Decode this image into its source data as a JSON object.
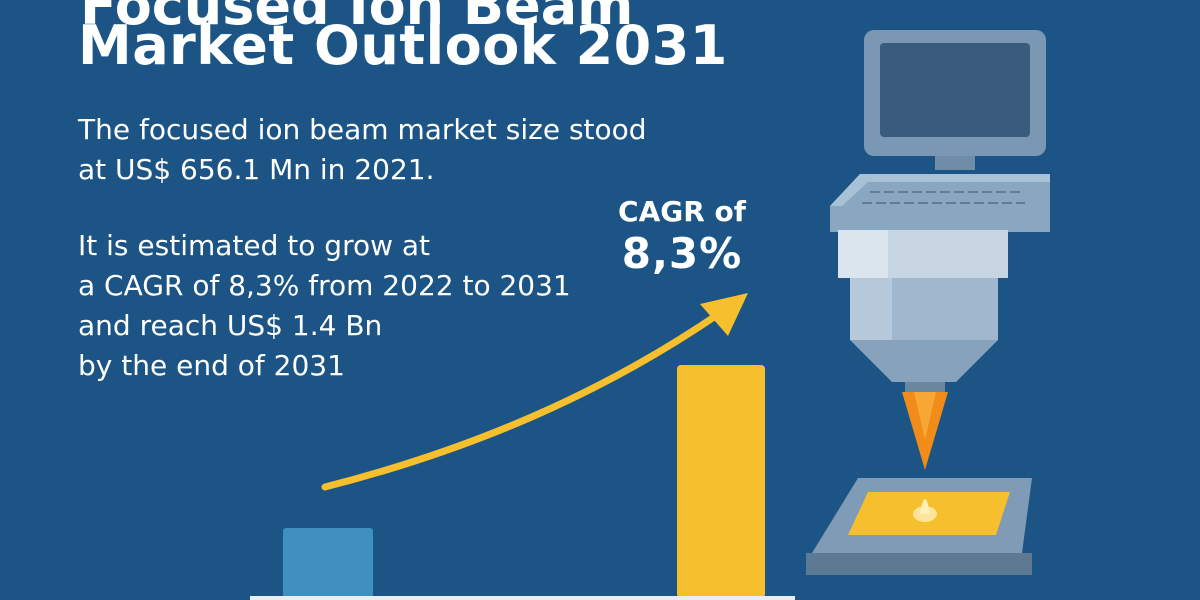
{
  "header": {
    "title_top_cut": "Focused Ion Beam",
    "title": "Market Outlook 2031"
  },
  "intro": {
    "lines": [
      "The focused ion beam market size stood",
      "at US$ 656.1 Mn in 2021."
    ]
  },
  "forecast": {
    "lines": [
      "It is estimated to grow at",
      "a CAGR of 8,3% from 2022 to 2031",
      "and reach US$ 1.4 Bn",
      "by the end of 2031"
    ]
  },
  "cagr_badge": {
    "label": "CAGR of",
    "value": "8,3%"
  },
  "bars": {
    "values_usd_mn": [
      656.1,
      1400
    ],
    "colors": [
      "#3f8fc0",
      "#f5bf2e"
    ]
  },
  "colors": {
    "background": "#1b5485",
    "accent": "#f5bf2e",
    "text": "#ffffff"
  }
}
